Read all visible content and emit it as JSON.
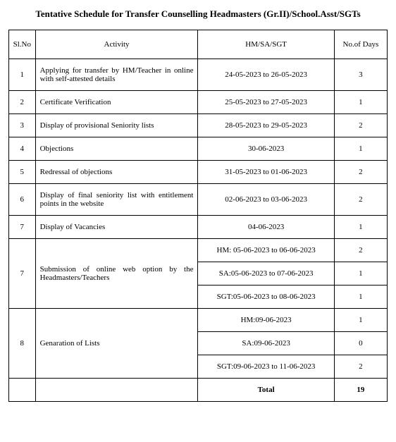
{
  "title": "Tentative Schedule for Transfer Counselling Headmasters (Gr.II)/School.Asst/SGTs",
  "headers": {
    "slno": "Sl.No",
    "activity": "Activity",
    "dates": "HM/SA/SGT",
    "days": "No.of Days"
  },
  "rows": [
    {
      "slno": "1",
      "activity": "Applying for transfer by HM/Teacher in online with self-attested details",
      "dates": "24-05-2023 to 26-05-2023",
      "days": "3"
    },
    {
      "slno": "2",
      "activity": "Certificate Verification",
      "dates": "25-05-2023 to 27-05-2023",
      "days": "1"
    },
    {
      "slno": "3",
      "activity": "Display of provisional Seniority lists",
      "dates": "28-05-2023 to 29-05-2023",
      "days": "2"
    },
    {
      "slno": "4",
      "activity": "Objections",
      "dates": "30-06-2023",
      "days": "1"
    },
    {
      "slno": "5",
      "activity": "Redressal of objections",
      "dates": "31-05-2023 to 01-06-2023",
      "days": "2"
    },
    {
      "slno": "6",
      "activity": "Display of final seniority list with entitlement points in the website",
      "dates": "02-06-2023 to 03-06-2023",
      "days": "2"
    },
    {
      "slno": "7",
      "activity": "Display of Vacancies",
      "dates": "04-06-2023",
      "days": "1"
    }
  ],
  "row8": {
    "slno": "7",
    "activity": "Submission of online web option by the Headmasters/Teachers",
    "sub": [
      {
        "dates": "HM: 05-06-2023 to 06-06-2023",
        "days": "2"
      },
      {
        "dates": "SA:05-06-2023 to 07-06-2023",
        "days": "1"
      },
      {
        "dates": "SGT:05-06-2023 to 08-06-2023",
        "days": "1"
      }
    ]
  },
  "row9": {
    "slno": "8",
    "activity": "Genaration of Lists",
    "sub": [
      {
        "dates": "HM:09-06-2023",
        "days": "1"
      },
      {
        "dates": "SA:09-06-2023",
        "days": "0"
      },
      {
        "dates": "SGT:09-06-2023 to 11-06-2023",
        "days": "2"
      }
    ]
  },
  "total": {
    "label": "Total",
    "value": "19"
  }
}
